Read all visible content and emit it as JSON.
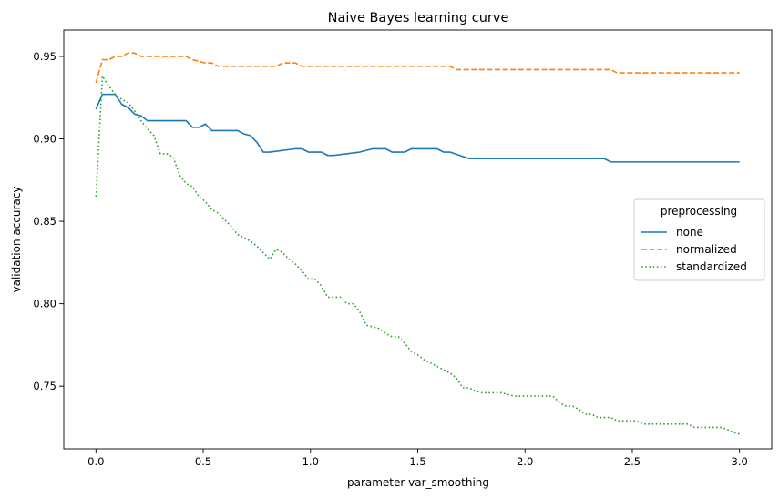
{
  "chart_data": {
    "type": "line",
    "title": "Naive Bayes learning curve",
    "xlabel": "parameter var_smoothing",
    "ylabel": "validation accuracy",
    "xlim": [
      -0.15,
      3.15
    ],
    "ylim": [
      0.712,
      0.966
    ],
    "xticks": [
      0.0,
      0.5,
      1.0,
      1.5,
      2.0,
      2.5,
      3.0
    ],
    "xtick_labels": [
      "0.0",
      "0.5",
      "1.0",
      "1.5",
      "2.0",
      "2.5",
      "3.0"
    ],
    "yticks": [
      0.75,
      0.8,
      0.85,
      0.9,
      0.95
    ],
    "ytick_labels": [
      "0.75",
      "0.80",
      "0.85",
      "0.90",
      "0.95"
    ],
    "grid": false,
    "legend": {
      "title": "preprocessing",
      "placement": "center-right"
    },
    "series": [
      {
        "name": "none",
        "color": "#1f77b4",
        "dash": "solid",
        "x": [
          0.0,
          0.03,
          0.09,
          0.12,
          0.15,
          0.18,
          0.21,
          0.24,
          0.42,
          0.45,
          0.48,
          0.51,
          0.54,
          0.66,
          0.69,
          0.72,
          0.75,
          0.78,
          0.81,
          0.93,
          0.96,
          0.99,
          1.05,
          1.08,
          1.11,
          1.23,
          1.29,
          1.32,
          1.35,
          1.38,
          1.41,
          1.44,
          1.47,
          1.5,
          1.59,
          1.62,
          1.65,
          1.74,
          1.77,
          1.8,
          2.37,
          2.4,
          2.43,
          3.0
        ],
        "y": [
          0.918,
          0.927,
          0.927,
          0.921,
          0.919,
          0.915,
          0.914,
          0.911,
          0.911,
          0.907,
          0.907,
          0.909,
          0.905,
          0.905,
          0.903,
          0.902,
          0.898,
          0.892,
          0.892,
          0.894,
          0.894,
          0.892,
          0.892,
          0.89,
          0.89,
          0.892,
          0.894,
          0.894,
          0.894,
          0.892,
          0.892,
          0.892,
          0.894,
          0.894,
          0.894,
          0.892,
          0.892,
          0.888,
          0.888,
          0.888,
          0.888,
          0.886,
          0.886,
          0.886
        ]
      },
      {
        "name": "normalized",
        "color": "#ff7f0e",
        "dash": "dashed",
        "x": [
          0.0,
          0.03,
          0.06,
          0.09,
          0.12,
          0.15,
          0.18,
          0.21,
          0.24,
          0.27,
          0.42,
          0.45,
          0.51,
          0.54,
          0.57,
          0.6,
          0.84,
          0.87,
          0.93,
          0.96,
          0.99,
          1.65,
          1.68,
          2.37,
          2.4,
          2.43,
          3.0
        ],
        "y": [
          0.934,
          0.948,
          0.948,
          0.95,
          0.95,
          0.952,
          0.952,
          0.95,
          0.95,
          0.95,
          0.95,
          0.948,
          0.946,
          0.946,
          0.944,
          0.944,
          0.944,
          0.946,
          0.946,
          0.944,
          0.944,
          0.944,
          0.942,
          0.942,
          0.942,
          0.94,
          0.94
        ]
      },
      {
        "name": "standardized",
        "color": "#2ca02c",
        "dash": "dotted",
        "x": [
          0.0,
          0.03,
          0.06,
          0.09,
          0.12,
          0.15,
          0.18,
          0.21,
          0.24,
          0.27,
          0.3,
          0.33,
          0.36,
          0.39,
          0.42,
          0.45,
          0.48,
          0.51,
          0.54,
          0.57,
          0.6,
          0.63,
          0.66,
          0.69,
          0.72,
          0.75,
          0.78,
          0.81,
          0.84,
          0.87,
          0.9,
          0.93,
          0.96,
          0.99,
          1.02,
          1.05,
          1.08,
          1.11,
          1.14,
          1.17,
          1.2,
          1.23,
          1.26,
          1.29,
          1.32,
          1.35,
          1.38,
          1.41,
          1.44,
          1.47,
          1.5,
          1.53,
          1.56,
          1.59,
          1.62,
          1.65,
          1.68,
          1.71,
          1.74,
          1.77,
          1.8,
          1.83,
          1.86,
          1.89,
          1.92,
          1.95,
          1.98,
          2.01,
          2.04,
          2.07,
          2.1,
          2.13,
          2.16,
          2.19,
          2.22,
          2.25,
          2.28,
          2.31,
          2.34,
          2.37,
          2.4,
          2.43,
          2.46,
          2.49,
          2.52,
          2.55,
          2.58,
          2.61,
          2.64,
          2.67,
          2.7,
          2.73,
          2.76,
          2.79,
          2.82,
          2.85,
          2.88,
          2.91,
          2.94,
          2.97,
          3.0
        ],
        "y": [
          0.865,
          0.938,
          0.932,
          0.927,
          0.924,
          0.922,
          0.917,
          0.911,
          0.906,
          0.902,
          0.891,
          0.891,
          0.889,
          0.878,
          0.873,
          0.871,
          0.865,
          0.862,
          0.857,
          0.855,
          0.851,
          0.847,
          0.842,
          0.84,
          0.838,
          0.835,
          0.831,
          0.827,
          0.833,
          0.831,
          0.827,
          0.824,
          0.82,
          0.815,
          0.815,
          0.811,
          0.804,
          0.804,
          0.804,
          0.8,
          0.8,
          0.795,
          0.787,
          0.786,
          0.785,
          0.782,
          0.78,
          0.78,
          0.776,
          0.771,
          0.769,
          0.766,
          0.764,
          0.762,
          0.76,
          0.758,
          0.755,
          0.749,
          0.749,
          0.747,
          0.746,
          0.746,
          0.746,
          0.746,
          0.745,
          0.744,
          0.744,
          0.744,
          0.744,
          0.744,
          0.744,
          0.744,
          0.74,
          0.738,
          0.738,
          0.736,
          0.733,
          0.733,
          0.731,
          0.731,
          0.731,
          0.729,
          0.729,
          0.729,
          0.729,
          0.727,
          0.727,
          0.727,
          0.727,
          0.727,
          0.727,
          0.727,
          0.727,
          0.725,
          0.725,
          0.725,
          0.725,
          0.725,
          0.724,
          0.722,
          0.721
        ]
      }
    ]
  }
}
